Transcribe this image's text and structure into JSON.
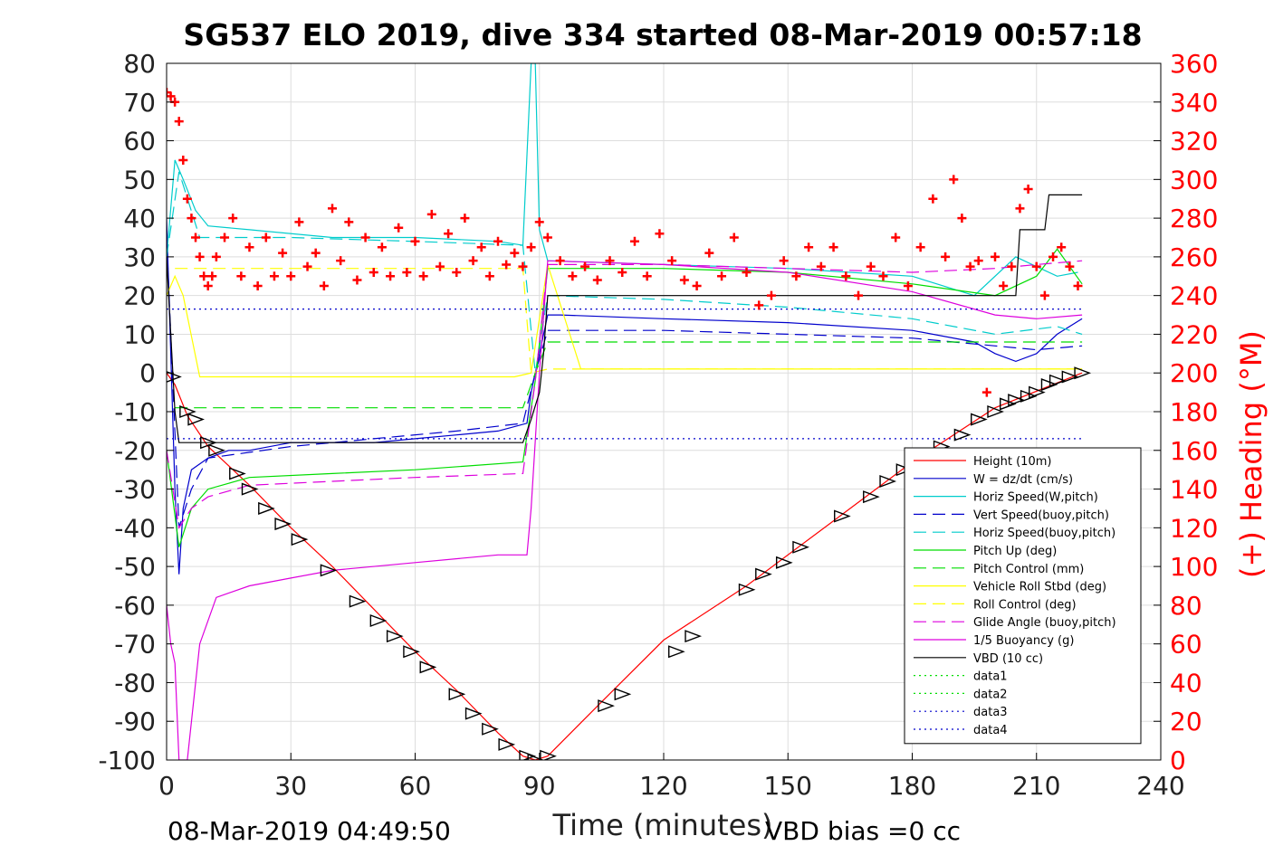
{
  "chart_data": {
    "type": "line",
    "title": "SG537 ELO 2019, dive 334 started 08-Mar-2019 00:57:18",
    "xlabel": "Time (minutes)",
    "ylabel_right": "(+) Heading (°M)",
    "footer_left": "08-Mar-2019 04:49:50",
    "footer_right": "VBD bias =0 cc",
    "xlim": [
      0,
      240
    ],
    "ylim_left": [
      -100,
      80
    ],
    "ylim_right": [
      0,
      360
    ],
    "x_ticks": [
      "0",
      "30",
      "60",
      "90",
      "120",
      "150",
      "180",
      "210",
      "240"
    ],
    "y_ticks_left": [
      "80",
      "70",
      "60",
      "50",
      "40",
      "30",
      "20",
      "10",
      "0",
      "-10",
      "-20",
      "-30",
      "-40",
      "-50",
      "-60",
      "-70",
      "-80",
      "-90",
      "-100"
    ],
    "y_ticks_right": [
      "360",
      "340",
      "320",
      "300",
      "280",
      "260",
      "240",
      "220",
      "200",
      "180",
      "160",
      "140",
      "120",
      "100",
      "80",
      "60",
      "40",
      "20",
      "0"
    ],
    "grid": true,
    "legend_position": "lower-right",
    "colors": {
      "left_axis": "#000000",
      "right_axis": "#ff0000",
      "grid": "#dddddd"
    },
    "series": [
      {
        "name": "Height (10m)",
        "color": "#ff0000",
        "dash": "solid",
        "x": [
          0,
          2,
          5,
          10,
          20,
          30,
          40,
          50,
          60,
          70,
          80,
          86,
          89,
          92,
          105,
          120,
          140,
          160,
          180,
          200,
          221
        ],
        "y": [
          0,
          -3,
          -11,
          -19,
          -29,
          -40,
          -50,
          -61,
          -72,
          -82,
          -93,
          -99,
          -100,
          -99,
          -85,
          -69,
          -55,
          -39,
          -23,
          -9,
          0
        ]
      },
      {
        "name": "W = dz/dt (cm/s)",
        "color": "#0000cc",
        "dash": "solid",
        "x": [
          0,
          2,
          3,
          4,
          6,
          10,
          15,
          20,
          30,
          40,
          50,
          60,
          70,
          80,
          87,
          88,
          90,
          92,
          95,
          120,
          150,
          180,
          195,
          200,
          205,
          210,
          215,
          221
        ],
        "y": [
          40,
          -30,
          -52,
          -35,
          -25,
          -22,
          -20,
          -20,
          -18,
          -18,
          -18,
          -17,
          -16,
          -15,
          -13,
          -5,
          5,
          15,
          15,
          14,
          13,
          11,
          8,
          5,
          3,
          5,
          10,
          14
        ]
      },
      {
        "name": "Horiz Speed(W,pitch)",
        "color": "#00cccc",
        "dash": "solid",
        "x": [
          0,
          2,
          4,
          7,
          10,
          20,
          40,
          60,
          80,
          86,
          88,
          89,
          90,
          92,
          120,
          150,
          180,
          195,
          205,
          215,
          220
        ],
        "y": [
          30,
          55,
          50,
          42,
          38,
          37,
          35,
          35,
          34,
          33,
          80,
          80,
          37,
          29,
          28,
          27,
          25,
          20,
          30,
          25,
          26
        ]
      },
      {
        "name": "Vert Speed(buoy,pitch)",
        "color": "#0000cc",
        "dash": "dash",
        "x": [
          0,
          3,
          6,
          10,
          30,
          50,
          70,
          86,
          89,
          92,
          120,
          150,
          180,
          200,
          210,
          221
        ],
        "y": [
          35,
          -40,
          -30,
          -22,
          -19,
          -17,
          -15,
          -13,
          0,
          11,
          11,
          10,
          9,
          7,
          6,
          7
        ]
      },
      {
        "name": "Horiz Speed(buoy,pitch)",
        "color": "#00cccc",
        "dash": "dash",
        "x": [
          0,
          3,
          8,
          30,
          60,
          86,
          89,
          92,
          120,
          150,
          180,
          200,
          215,
          221
        ],
        "y": [
          30,
          52,
          35,
          35,
          34,
          33,
          0,
          20,
          19,
          17,
          14,
          10,
          12,
          10
        ]
      },
      {
        "name": "Pitch Up (deg)",
        "color": "#00dd00",
        "dash": "solid",
        "x": [
          0,
          3,
          6,
          10,
          20,
          40,
          60,
          86,
          89,
          92,
          120,
          150,
          180,
          200,
          210,
          215,
          221
        ],
        "y": [
          -20,
          -45,
          -35,
          -30,
          -27,
          -26,
          -25,
          -23,
          -2,
          27,
          27,
          26,
          23,
          20,
          25,
          32,
          23
        ]
      },
      {
        "name": "Pitch Control (mm)",
        "color": "#00dd00",
        "dash": "dash",
        "x": [
          2,
          86,
          89,
          92,
          180,
          221
        ],
        "y": [
          -9,
          -9,
          0,
          8,
          8,
          8
        ]
      },
      {
        "name": "Vehicle Roll Stbd (deg)",
        "color": "#ffff00",
        "dash": "solid",
        "x": [
          0,
          2,
          4,
          8,
          12,
          16,
          20,
          24,
          28,
          32,
          36,
          40,
          44,
          48,
          52,
          56,
          60,
          64,
          68,
          72,
          76,
          80,
          84,
          88,
          92,
          100,
          110,
          130,
          150,
          170,
          190,
          200,
          210,
          221
        ],
        "y": [
          20,
          25,
          20,
          -1,
          -1,
          -1,
          -1,
          -1,
          -1,
          -1,
          -1,
          -1,
          -1,
          -1,
          -1,
          -1,
          -1,
          -1,
          -1,
          -1,
          -1,
          -1,
          -1,
          0,
          28,
          1,
          1,
          1,
          1,
          1,
          1,
          1,
          1,
          1
        ]
      },
      {
        "name": "Roll Control (deg)",
        "color": "#ffff00",
        "dash": "dash",
        "x": [
          2,
          86,
          88,
          92,
          221
        ],
        "y": [
          27,
          27,
          0,
          1,
          1
        ]
      },
      {
        "name": "Glide Angle (buoy,pitch)",
        "color": "#dd00dd",
        "dash": "dash",
        "x": [
          0,
          3,
          6,
          10,
          20,
          40,
          60,
          86,
          89,
          92,
          120,
          150,
          180,
          200,
          210,
          221
        ],
        "y": [
          -20,
          -40,
          -35,
          -32,
          -29,
          -28,
          -27,
          -26,
          -2,
          28,
          28,
          27,
          26,
          27,
          28,
          29
        ]
      },
      {
        "name": "1/5 Buoyancy (g)",
        "color": "#dd00dd",
        "dash": "solid",
        "x": [
          0,
          1,
          2,
          3,
          4,
          5,
          8,
          12,
          20,
          30,
          40,
          60,
          80,
          87,
          88,
          90,
          92,
          120,
          150,
          180,
          200,
          210,
          221
        ],
        "y": [
          -60,
          -70,
          -75,
          -100,
          -100,
          -100,
          -70,
          -58,
          -55,
          -53,
          -51,
          -49,
          -47,
          -47,
          -35,
          0,
          29,
          28,
          26,
          21,
          15,
          14,
          15
        ]
      },
      {
        "name": "VBD (10 cc)",
        "color": "#000000",
        "dash": "solid",
        "x": [
          0,
          2,
          3,
          86,
          88,
          90,
          91,
          92,
          205,
          206,
          212,
          213,
          221
        ],
        "y": [
          30,
          -10,
          -18,
          -18,
          -12,
          -5,
          5,
          20,
          20,
          37,
          37,
          46,
          46
        ]
      },
      {
        "name": "data1",
        "color": "#00dd00",
        "dash": "dot",
        "x": [],
        "y": []
      },
      {
        "name": "data2",
        "color": "#00dd00",
        "dash": "dot",
        "x": [],
        "y": []
      },
      {
        "name": "data3",
        "color": "#0000cc",
        "dash": "dot",
        "x": [
          0,
          221
        ],
        "y": [
          16.5,
          16.5
        ]
      },
      {
        "name": "data4",
        "color": "#0000cc",
        "dash": "dot",
        "x": [
          0,
          221
        ],
        "y": [
          -17,
          -17
        ]
      }
    ],
    "heading_markers": {
      "axis": "right",
      "color": "#ff0000",
      "marker": "plus",
      "x": [
        0,
        1,
        2,
        3,
        4,
        5,
        6,
        7,
        8,
        9,
        10,
        11,
        12,
        14,
        16,
        18,
        20,
        22,
        24,
        26,
        28,
        30,
        32,
        34,
        36,
        38,
        40,
        42,
        44,
        46,
        48,
        50,
        52,
        54,
        56,
        58,
        60,
        62,
        64,
        66,
        68,
        70,
        72,
        74,
        76,
        78,
        80,
        82,
        84,
        86,
        88,
        90,
        92,
        95,
        98,
        101,
        104,
        107,
        110,
        113,
        116,
        119,
        122,
        125,
        128,
        131,
        134,
        137,
        140,
        143,
        146,
        149,
        152,
        155,
        158,
        161,
        164,
        167,
        170,
        173,
        176,
        179,
        182,
        185,
        188,
        190,
        192,
        194,
        196,
        198,
        200,
        202,
        204,
        206,
        208,
        210,
        212,
        214,
        216,
        218,
        220
      ],
      "y": [
        345,
        343,
        340,
        330,
        310,
        290,
        280,
        270,
        260,
        250,
        245,
        250,
        260,
        270,
        280,
        250,
        265,
        245,
        270,
        250,
        262,
        250,
        278,
        255,
        262,
        245,
        285,
        258,
        278,
        248,
        270,
        252,
        265,
        250,
        275,
        252,
        268,
        250,
        282,
        255,
        272,
        252,
        280,
        258,
        265,
        250,
        268,
        256,
        262,
        255,
        265,
        278,
        270,
        258,
        250,
        255,
        248,
        258,
        252,
        268,
        250,
        272,
        258,
        248,
        245,
        262,
        250,
        270,
        252,
        235,
        240,
        258,
        250,
        265,
        255,
        265,
        250,
        240,
        255,
        250,
        270,
        245,
        265,
        290,
        260,
        300,
        280,
        255,
        258,
        190,
        260,
        245,
        255,
        285,
        295,
        255,
        240,
        260,
        265,
        255,
        245
      ]
    },
    "depth_markers": {
      "axis": "left",
      "color": "#000000",
      "marker": "triangle",
      "x": [
        1.5,
        5,
        7,
        10,
        12,
        17,
        20,
        24,
        28,
        32,
        39,
        46,
        51,
        55,
        59,
        63,
        70,
        74,
        78,
        82,
        87,
        89,
        92,
        106,
        110,
        123,
        127,
        140,
        144,
        149,
        153,
        163,
        170,
        174,
        178,
        182,
        187,
        192,
        196,
        200,
        203,
        205,
        208,
        210,
        213,
        215,
        218,
        221
      ],
      "y": [
        -1,
        -10,
        -12,
        -18,
        -20,
        -26,
        -30,
        -35,
        -39,
        -43,
        -51,
        -59,
        -64,
        -68,
        -72,
        -76,
        -83,
        -88,
        -92,
        -96,
        -99,
        -100,
        -99,
        -86,
        -83,
        -72,
        -68,
        -56,
        -52,
        -49,
        -45,
        -37,
        -32,
        -28,
        -25,
        -22,
        -19,
        -16,
        -12,
        -10,
        -8,
        -7,
        -6,
        -5,
        -3,
        -2,
        -1,
        0
      ]
    }
  }
}
